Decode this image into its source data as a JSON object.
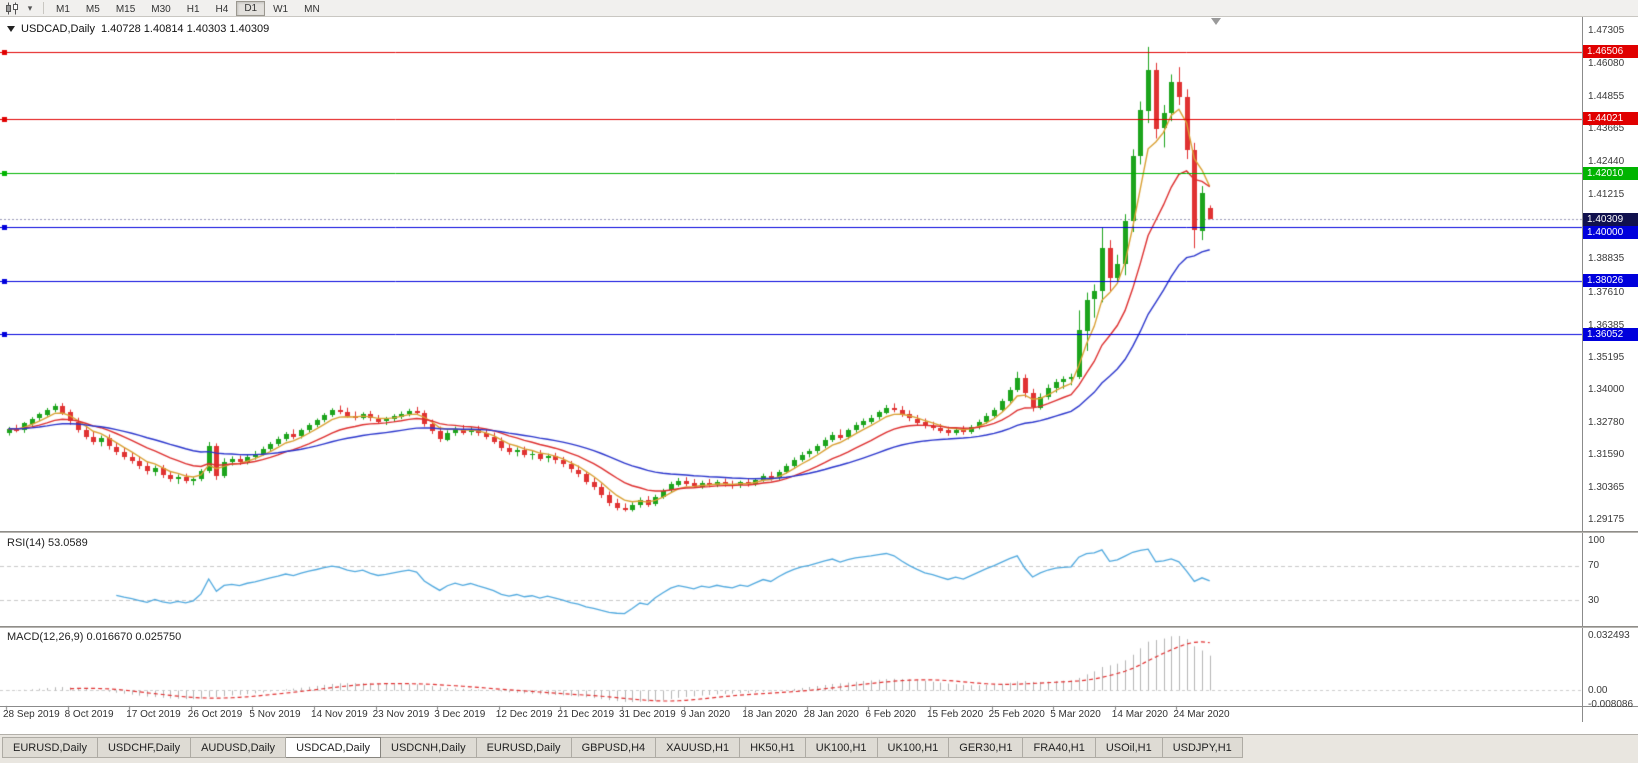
{
  "toolbar": {
    "periods": [
      {
        "label": "M1",
        "active": false
      },
      {
        "label": "M5",
        "active": false
      },
      {
        "label": "M15",
        "active": false
      },
      {
        "label": "M30",
        "active": false
      },
      {
        "label": "H1",
        "active": false
      },
      {
        "label": "H4",
        "active": false
      },
      {
        "label": "D1",
        "active": true
      },
      {
        "label": "W1",
        "active": false
      },
      {
        "label": "MN",
        "active": false
      }
    ]
  },
  "chart": {
    "title_symbol": "USDCAD,Daily",
    "title_ohlc": "1.40728 1.40814 1.40303 1.40309"
  },
  "bid": {
    "label": "1.40309",
    "price": 1.40309,
    "color": "#11114e"
  },
  "rsi": {
    "label": "RSI(14) 53.0589",
    "value": "53.0589",
    "period": 14,
    "scale_labels": [
      "100",
      "70",
      "30"
    ],
    "levels": [
      70,
      30
    ],
    "line_color": "#4fa8de"
  },
  "macd": {
    "label": "MACD(12,26,9) 0.016670 0.025750",
    "main_value": "0.016670",
    "signal_value": "0.025750",
    "fast": 12,
    "slow": 26,
    "signal": 9,
    "scale_labels": [
      "0.032493",
      "0.00",
      "-0.008086"
    ],
    "histogram_color": "#b4b4b4",
    "signal_color": "#e03030"
  },
  "tabs": {
    "active_index": 3,
    "items": [
      "EURUSD,Daily",
      "USDCHF,Daily",
      "AUDUSD,Daily",
      "USDCAD,Daily",
      "USDCNH,Daily",
      "EURUSD,Daily",
      "GBPUSD,H4",
      "XAUUSD,H1",
      "HK50,H1",
      "UK100,H1",
      "UK100,H1",
      "GER30,H1",
      "FRA40,H1",
      "USOil,H1",
      "USDJPY,H1"
    ]
  },
  "chart_data": {
    "type": "candlestick",
    "symbol": "USDCAD",
    "timeframe": "Daily",
    "title": "USDCAD,Daily",
    "ylim": [
      1.2877,
      1.4779
    ],
    "up_color": "#1CA41C",
    "down_color": "#E03232",
    "y_tick_labels": [
      "1.47305",
      "1.46080",
      "1.44855",
      "1.43665",
      "1.42440",
      "1.41215",
      "1.39990",
      "1.38835",
      "1.37610",
      "1.36385",
      "1.35195",
      "1.34000",
      "1.32780",
      "1.31590",
      "1.30365",
      "1.29175"
    ],
    "x_labels": [
      "28 Sep 2019",
      "8 Oct 2019",
      "17 Oct 2019",
      "26 Oct 2019",
      "5 Nov 2019",
      "14 Nov 2019",
      "23 Nov 2019",
      "3 Dec 2019",
      "12 Dec 2019",
      "21 Dec 2019",
      "31 Dec 2019",
      "9 Jan 2020",
      "18 Jan 2020",
      "28 Jan 2020",
      "6 Feb 2020",
      "15 Feb 2020",
      "25 Feb 2020",
      "5 Mar 2020",
      "14 Mar 2020",
      "24 Mar 2020"
    ],
    "bars_per_x_label": 8,
    "h_lines": [
      {
        "label": "1.46506",
        "price": 1.46506,
        "color": "#e00000",
        "type": "resistance"
      },
      {
        "label": "1.44021",
        "price": 1.44021,
        "color": "#e00000",
        "type": "resistance"
      },
      {
        "label": "1.42010",
        "price": 1.4201,
        "color": "#00b400",
        "type": "level"
      },
      {
        "label": "1.40000",
        "price": 1.4,
        "color": "#0000dc",
        "type": "support"
      },
      {
        "label": "1.38026",
        "price": 1.38026,
        "color": "#0000dc",
        "type": "support"
      },
      {
        "label": "1.36052",
        "price": 1.36052,
        "color": "#0000dc",
        "type": "support"
      }
    ],
    "overlays": [
      {
        "name": "EMA(5)",
        "period": 5,
        "color": "#d9a033"
      },
      {
        "name": "EMA(13)",
        "period": 13,
        "color": "#dd2e2e"
      },
      {
        "name": "EMA(30)",
        "period": 30,
        "color": "#2a35cc"
      }
    ],
    "indicators": [
      {
        "name": "RSI",
        "params": "14",
        "value": 53.0589
      },
      {
        "name": "MACD",
        "params": "12,26,9",
        "values": [
          0.01667,
          0.02575
        ]
      }
    ],
    "ohlc": [
      [
        1.324,
        1.3262,
        1.323,
        1.3255
      ],
      [
        1.3255,
        1.327,
        1.3242,
        1.3248
      ],
      [
        1.3248,
        1.328,
        1.324,
        1.3275
      ],
      [
        1.3275,
        1.3298,
        1.3266,
        1.3292
      ],
      [
        1.3292,
        1.3315,
        1.3284,
        1.3308
      ],
      [
        1.3308,
        1.3332,
        1.33,
        1.3326
      ],
      [
        1.3326,
        1.3348,
        1.3316,
        1.3341
      ],
      [
        1.3341,
        1.335,
        1.3306,
        1.3316
      ],
      [
        1.3316,
        1.3326,
        1.327,
        1.3281
      ],
      [
        1.3281,
        1.3296,
        1.3241,
        1.3252
      ],
      [
        1.3252,
        1.3268,
        1.3216,
        1.3226
      ],
      [
        1.3226,
        1.3246,
        1.3196,
        1.3206
      ],
      [
        1.3206,
        1.323,
        1.319,
        1.322
      ],
      [
        1.322,
        1.3234,
        1.3178,
        1.3189
      ],
      [
        1.3189,
        1.3206,
        1.3158,
        1.3169
      ],
      [
        1.3169,
        1.3186,
        1.3141,
        1.3151
      ],
      [
        1.3151,
        1.3169,
        1.3126,
        1.3136
      ],
      [
        1.3136,
        1.3153,
        1.3106,
        1.3116
      ],
      [
        1.3116,
        1.3131,
        1.3086,
        1.3096
      ],
      [
        1.3096,
        1.3119,
        1.3081,
        1.3109
      ],
      [
        1.3109,
        1.3121,
        1.3073,
        1.3083
      ],
      [
        1.3083,
        1.3099,
        1.3059,
        1.3069
      ],
      [
        1.3069,
        1.3086,
        1.3051,
        1.3076
      ],
      [
        1.3076,
        1.3089,
        1.3053,
        1.3061
      ],
      [
        1.3061,
        1.3076,
        1.3046,
        1.3069
      ],
      [
        1.3069,
        1.3106,
        1.3061,
        1.3099
      ],
      [
        1.3099,
        1.3206,
        1.3091,
        1.3193
      ],
      [
        1.3193,
        1.3201,
        1.3066,
        1.3081
      ],
      [
        1.3081,
        1.3146,
        1.3073,
        1.3133
      ],
      [
        1.3133,
        1.3153,
        1.3119,
        1.3143
      ],
      [
        1.3143,
        1.3156,
        1.3121,
        1.3131
      ],
      [
        1.3131,
        1.3159,
        1.3123,
        1.3151
      ],
      [
        1.3151,
        1.3173,
        1.3141,
        1.3163
      ],
      [
        1.3163,
        1.3189,
        1.3156,
        1.3181
      ],
      [
        1.3181,
        1.3206,
        1.3173,
        1.3199
      ],
      [
        1.3199,
        1.3226,
        1.3191,
        1.3216
      ],
      [
        1.3216,
        1.3243,
        1.3209,
        1.3236
      ],
      [
        1.3236,
        1.3253,
        1.3216,
        1.3226
      ],
      [
        1.3226,
        1.3256,
        1.3219,
        1.3249
      ],
      [
        1.3249,
        1.3276,
        1.3241,
        1.3269
      ],
      [
        1.3269,
        1.3293,
        1.3261,
        1.3286
      ],
      [
        1.3286,
        1.3313,
        1.3279,
        1.3306
      ],
      [
        1.3306,
        1.3331,
        1.3299,
        1.3323
      ],
      [
        1.3323,
        1.3341,
        1.3309,
        1.3317
      ],
      [
        1.3317,
        1.3333,
        1.3296,
        1.3303
      ],
      [
        1.3303,
        1.3319,
        1.3286,
        1.3296
      ],
      [
        1.3296,
        1.3316,
        1.3289,
        1.3309
      ],
      [
        1.3309,
        1.3321,
        1.3283,
        1.3293
      ],
      [
        1.3293,
        1.3306,
        1.3273,
        1.3283
      ],
      [
        1.3283,
        1.3299,
        1.3269,
        1.3291
      ],
      [
        1.3291,
        1.3309,
        1.3281,
        1.3301
      ],
      [
        1.3301,
        1.3319,
        1.3291,
        1.3311
      ],
      [
        1.3311,
        1.3329,
        1.3301,
        1.3321
      ],
      [
        1.3321,
        1.3336,
        1.3306,
        1.3313
      ],
      [
        1.3313,
        1.3323,
        1.3263,
        1.3273
      ],
      [
        1.3273,
        1.3289,
        1.3236,
        1.3246
      ],
      [
        1.3246,
        1.3263,
        1.3206,
        1.3216
      ],
      [
        1.3216,
        1.3249,
        1.3209,
        1.3241
      ],
      [
        1.3241,
        1.3263,
        1.3229,
        1.3256
      ],
      [
        1.3256,
        1.3269,
        1.3233,
        1.3243
      ],
      [
        1.3243,
        1.3261,
        1.3231,
        1.3253
      ],
      [
        1.3253,
        1.3266,
        1.3229,
        1.3239
      ],
      [
        1.3239,
        1.3253,
        1.3216,
        1.3226
      ],
      [
        1.3226,
        1.3241,
        1.3199,
        1.3209
      ],
      [
        1.3209,
        1.3223,
        1.3173,
        1.3183
      ],
      [
        1.3183,
        1.3199,
        1.3159,
        1.3169
      ],
      [
        1.3169,
        1.3186,
        1.3153,
        1.3176
      ],
      [
        1.3176,
        1.3189,
        1.3149,
        1.3159
      ],
      [
        1.3159,
        1.3173,
        1.3141,
        1.3163
      ],
      [
        1.3163,
        1.3176,
        1.3136,
        1.3146
      ],
      [
        1.3146,
        1.3163,
        1.3131,
        1.3153
      ],
      [
        1.3153,
        1.3166,
        1.3126,
        1.3139
      ],
      [
        1.3139,
        1.3151,
        1.3113,
        1.3123
      ],
      [
        1.3123,
        1.3136,
        1.3093,
        1.3103
      ],
      [
        1.3103,
        1.3119,
        1.3076,
        1.3089
      ],
      [
        1.3089,
        1.3099,
        1.3049,
        1.3059
      ],
      [
        1.3059,
        1.3073,
        1.3029,
        1.3041
      ],
      [
        1.3041,
        1.3053,
        1.2999,
        1.3011
      ],
      [
        1.3011,
        1.3023,
        1.2969,
        1.2981
      ],
      [
        1.2981,
        1.2996,
        1.2953,
        1.2963
      ],
      [
        1.2963,
        1.2979,
        1.2949,
        1.2956
      ],
      [
        1.2956,
        1.2983,
        1.2949,
        1.2973
      ],
      [
        1.2973,
        1.3001,
        1.2963,
        1.2993
      ],
      [
        1.2993,
        1.3006,
        1.2966,
        1.2976
      ],
      [
        1.2976,
        1.3011,
        1.2969,
        1.3003
      ],
      [
        1.3003,
        1.3033,
        1.2996,
        1.3026
      ],
      [
        1.3026,
        1.3059,
        1.3019,
        1.3049
      ],
      [
        1.3049,
        1.3073,
        1.3041,
        1.3063
      ],
      [
        1.3063,
        1.3076,
        1.3043,
        1.3053
      ],
      [
        1.3053,
        1.3069,
        1.3036,
        1.3043
      ],
      [
        1.3043,
        1.3063,
        1.3033,
        1.3056
      ],
      [
        1.3056,
        1.3069,
        1.3039,
        1.3049
      ],
      [
        1.3049,
        1.3066,
        1.3039,
        1.3059
      ],
      [
        1.3059,
        1.3071,
        1.3041,
        1.3051
      ],
      [
        1.3051,
        1.3063,
        1.3033,
        1.3045
      ],
      [
        1.3045,
        1.3063,
        1.3036,
        1.3057
      ],
      [
        1.3057,
        1.3069,
        1.3041,
        1.3051
      ],
      [
        1.3051,
        1.3073,
        1.3043,
        1.3066
      ],
      [
        1.3066,
        1.3089,
        1.3059,
        1.3081
      ],
      [
        1.3081,
        1.3096,
        1.3063,
        1.3073
      ],
      [
        1.3073,
        1.3103,
        1.3066,
        1.3096
      ],
      [
        1.3096,
        1.3126,
        1.3089,
        1.3119
      ],
      [
        1.3119,
        1.3149,
        1.3111,
        1.3141
      ],
      [
        1.3141,
        1.3169,
        1.3133,
        1.3159
      ],
      [
        1.3159,
        1.3181,
        1.3149,
        1.3171
      ],
      [
        1.3171,
        1.3199,
        1.3163,
        1.3191
      ],
      [
        1.3191,
        1.3223,
        1.3183,
        1.3213
      ],
      [
        1.3213,
        1.3243,
        1.3206,
        1.3233
      ],
      [
        1.3233,
        1.3253,
        1.3213,
        1.3223
      ],
      [
        1.3223,
        1.3256,
        1.3216,
        1.3249
      ],
      [
        1.3249,
        1.3279,
        1.3241,
        1.3269
      ],
      [
        1.3269,
        1.3293,
        1.3259,
        1.3283
      ],
      [
        1.3283,
        1.3306,
        1.3273,
        1.3296
      ],
      [
        1.3296,
        1.3323,
        1.3289,
        1.3316
      ],
      [
        1.3316,
        1.3343,
        1.3309,
        1.3333
      ],
      [
        1.3333,
        1.3349,
        1.3316,
        1.3326
      ],
      [
        1.3326,
        1.3339,
        1.3299,
        1.3309
      ],
      [
        1.3309,
        1.3323,
        1.3283,
        1.3293
      ],
      [
        1.3293,
        1.3306,
        1.3269,
        1.3279
      ],
      [
        1.3279,
        1.3293,
        1.3256,
        1.3266
      ],
      [
        1.3266,
        1.3281,
        1.3249,
        1.3259
      ],
      [
        1.3259,
        1.3273,
        1.3239,
        1.3249
      ],
      [
        1.3249,
        1.3263,
        1.3229,
        1.3239
      ],
      [
        1.3239,
        1.3259,
        1.3231,
        1.3251
      ],
      [
        1.3251,
        1.3266,
        1.3233,
        1.3243
      ],
      [
        1.3243,
        1.3269,
        1.3236,
        1.3261
      ],
      [
        1.3261,
        1.3289,
        1.3253,
        1.3281
      ],
      [
        1.3281,
        1.3313,
        1.3273,
        1.3303
      ],
      [
        1.3303,
        1.3333,
        1.3296,
        1.3326
      ],
      [
        1.3326,
        1.3366,
        1.3319,
        1.3359
      ],
      [
        1.3359,
        1.3409,
        1.3351,
        1.3399
      ],
      [
        1.3399,
        1.3466,
        1.3391,
        1.3443
      ],
      [
        1.3443,
        1.3456,
        1.3371,
        1.3386
      ],
      [
        1.3386,
        1.3403,
        1.3319,
        1.3333
      ],
      [
        1.3333,
        1.3386,
        1.3326,
        1.3373
      ],
      [
        1.3373,
        1.3419,
        1.3363,
        1.3406
      ],
      [
        1.3406,
        1.3439,
        1.3389,
        1.3429
      ],
      [
        1.3429,
        1.3449,
        1.3403,
        1.3439
      ],
      [
        1.3439,
        1.3459,
        1.3416,
        1.3446
      ],
      [
        1.3446,
        1.3693,
        1.3439,
        1.3619
      ],
      [
        1.3619,
        1.3759,
        1.3543,
        1.3733
      ],
      [
        1.3733,
        1.3789,
        1.3666,
        1.3763
      ],
      [
        1.3763,
        1.3999,
        1.3723,
        1.3923
      ],
      [
        1.3923,
        1.3953,
        1.3763,
        1.3813
      ],
      [
        1.3813,
        1.3899,
        1.3796,
        1.3863
      ],
      [
        1.3863,
        1.4049,
        1.3823,
        1.4023
      ],
      [
        1.4023,
        1.4289,
        1.3983,
        1.4263
      ],
      [
        1.4263,
        1.4466,
        1.4233,
        1.4433
      ],
      [
        1.4433,
        1.4668,
        1.4386,
        1.4583
      ],
      [
        1.4583,
        1.4609,
        1.4329,
        1.4366
      ],
      [
        1.4366,
        1.4453,
        1.4296,
        1.4423
      ],
      [
        1.4423,
        1.4566,
        1.4393,
        1.4539
      ],
      [
        1.4539,
        1.4593,
        1.4453,
        1.4483
      ],
      [
        1.4483,
        1.4511,
        1.4253,
        1.4286
      ],
      [
        1.4286,
        1.4313,
        1.3923,
        1.3989
      ],
      [
        1.3989,
        1.4153,
        1.3953,
        1.4129
      ],
      [
        1.40728,
        1.40814,
        1.40303,
        1.40309
      ]
    ]
  }
}
